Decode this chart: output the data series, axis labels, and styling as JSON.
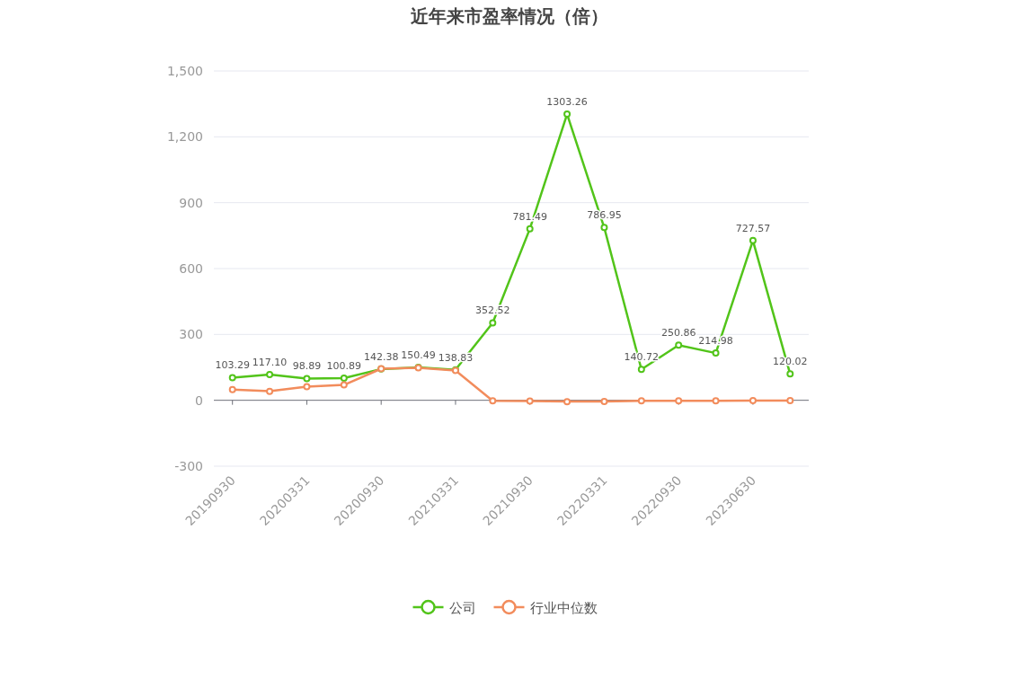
{
  "chart_data": {
    "type": "line",
    "title": "近年来市盈率情况（倍）",
    "categories": [
      "20190930",
      null,
      "20200331",
      null,
      "20200930",
      null,
      "20210331",
      null,
      "20210930",
      null,
      "20220331",
      null,
      "20220930",
      null,
      "20230630",
      null
    ],
    "series": [
      {
        "name": "公司",
        "color": "#52c41a",
        "values": [
          103.29,
          117.1,
          98.89,
          100.89,
          142.38,
          150.49,
          138.83,
          352.52,
          781.49,
          1303.26,
          786.95,
          140.72,
          250.86,
          214.98,
          727.57,
          120.02
        ],
        "value_labels": [
          "103.29",
          "117.10",
          "98.89",
          "100.89",
          "142.38",
          "150.49",
          "138.83",
          "352.52",
          "781.49",
          "1303.26",
          "786.95",
          "140.72",
          "250.86",
          "214.98",
          "727.57",
          "120.02"
        ]
      },
      {
        "name": "行业中位数",
        "color": "#f28c5c",
        "values": [
          49,
          41,
          62,
          70,
          144,
          148,
          136,
          -2,
          -3,
          -6,
          -5,
          -2,
          -2,
          -2,
          -1,
          -1
        ]
      }
    ],
    "ylim": [
      -300,
      1500
    ],
    "yticks": [
      -300,
      0,
      {
        "value": 300,
        "label": "300"
      },
      600,
      900,
      {
        "value": 1200,
        "label": "1,200"
      },
      {
        "value": 1500,
        "label": "1,500"
      }
    ],
    "grid": "y",
    "legend": "bottom",
    "marker": "circle",
    "line_style": "solid"
  }
}
